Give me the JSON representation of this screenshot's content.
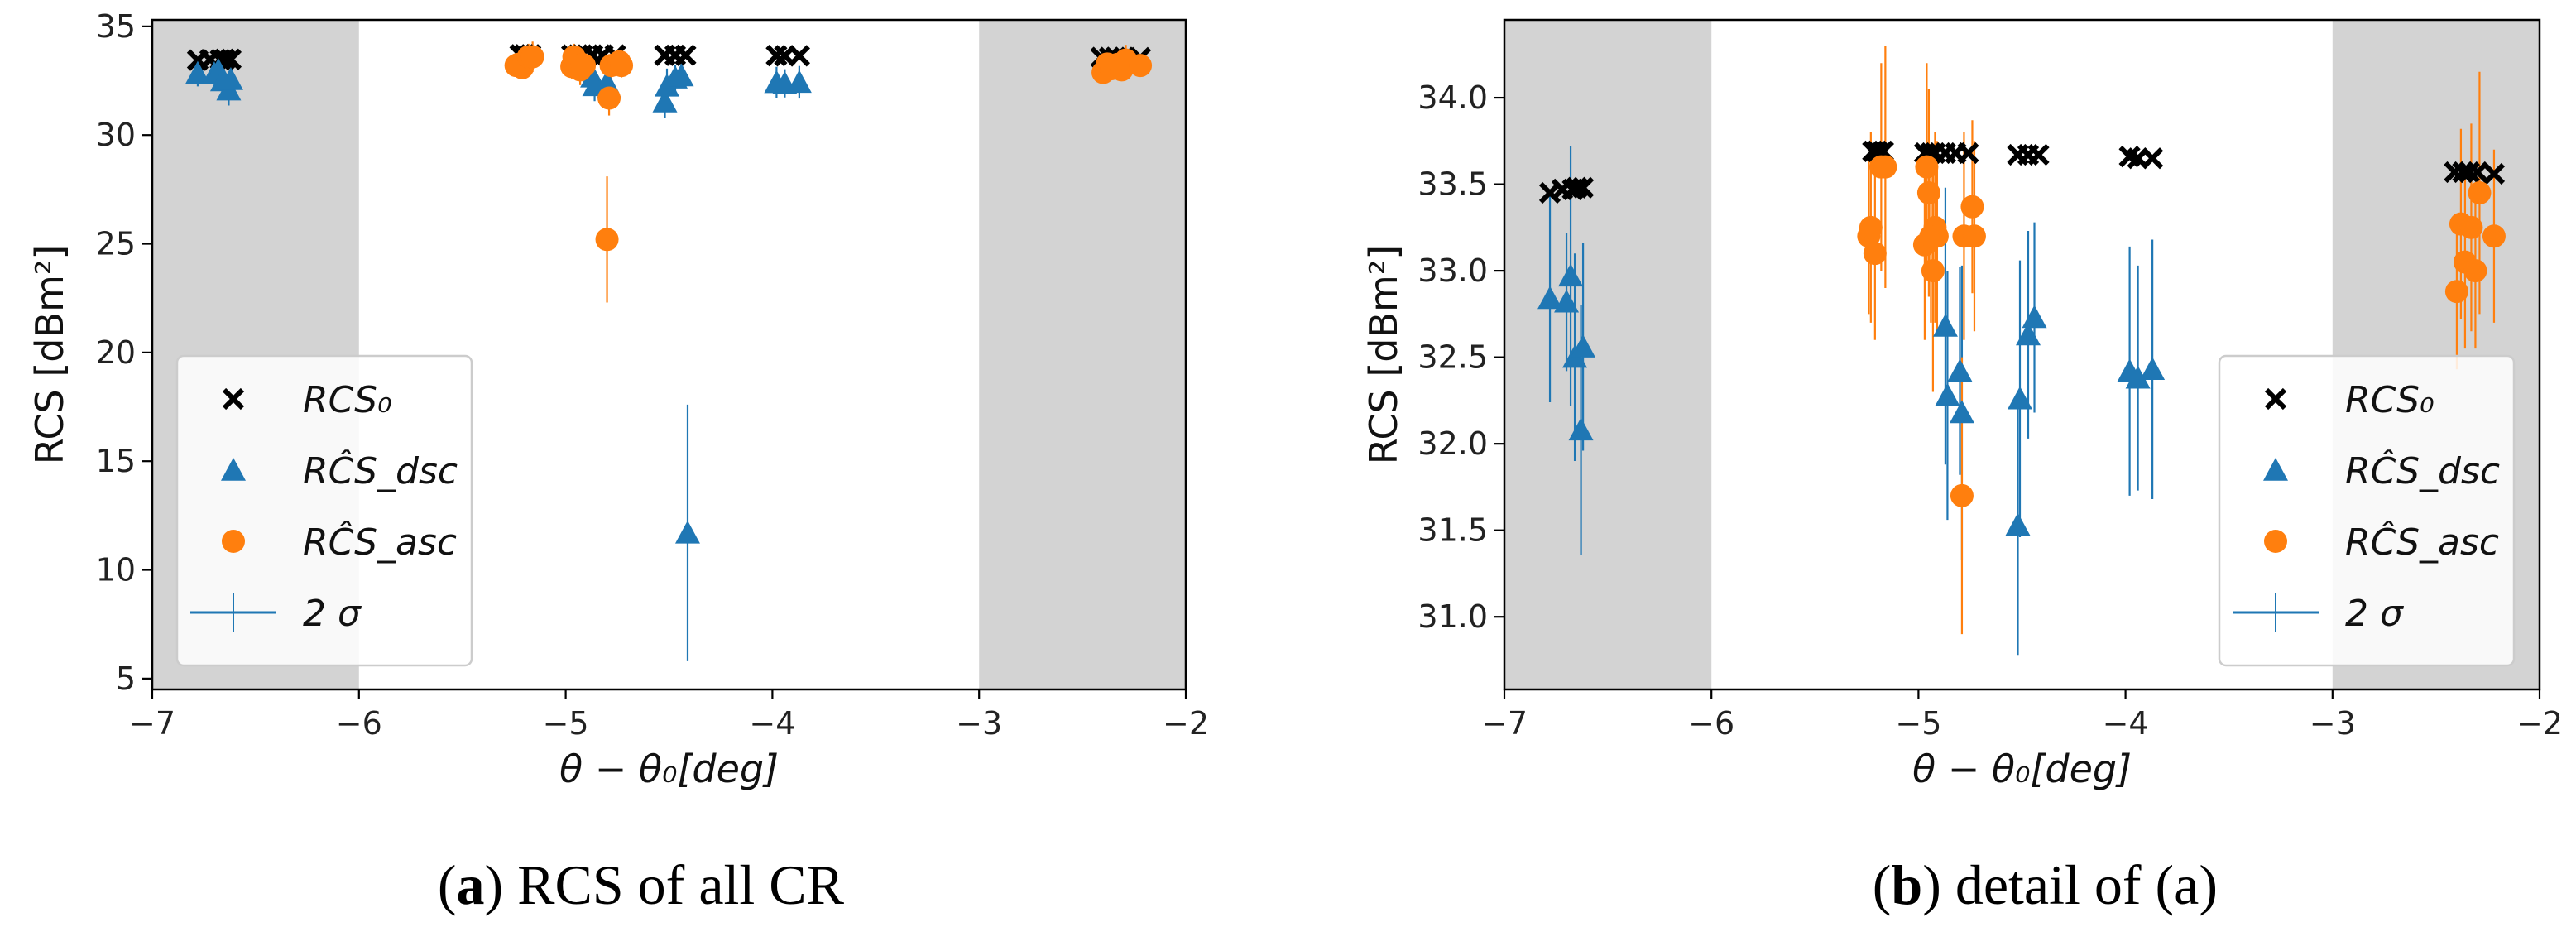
{
  "chart_data": [
    {
      "type": "scatter",
      "caption_letter": "a",
      "caption_text": ") RCS of all CR",
      "xlabel": "θ − θ₀[deg]",
      "ylabel": "RCS [dBm²]",
      "xlim": [
        -7,
        -2
      ],
      "ylim": [
        4.5,
        35.3
      ],
      "xticks": [
        -7,
        -6,
        -5,
        -4,
        -3,
        -2
      ],
      "yticks": [
        5,
        10,
        15,
        20,
        25,
        30,
        35
      ],
      "shaded_x_ranges": [
        [
          -7,
          -6
        ],
        [
          -3,
          -2
        ]
      ],
      "grid": false,
      "legend_position": "lower-left",
      "legend": [
        "RCS₀",
        "RĈS_dsc",
        "RĈS_asc",
        "2 σ"
      ],
      "colors": {
        "rcs0": "#000000",
        "dsc": "#1f77b4",
        "asc": "#ff7f0e",
        "shade": "#d3d3d3"
      },
      "series": [
        {
          "name": "RCS₀",
          "marker": "x",
          "x": [
            -6.78,
            -6.72,
            -6.67,
            -6.65,
            -6.62,
            -5.22,
            -5.2,
            -5.17,
            -4.97,
            -4.94,
            -4.92,
            -4.87,
            -4.82,
            -4.76,
            -4.52,
            -4.47,
            -4.42,
            -3.98,
            -3.94,
            -3.87,
            -2.41,
            -2.37,
            -2.34,
            -2.3,
            -2.22
          ],
          "y": [
            33.45,
            33.47,
            33.47,
            33.48,
            33.48,
            33.69,
            33.69,
            33.69,
            33.68,
            33.68,
            33.68,
            33.68,
            33.68,
            33.68,
            33.67,
            33.67,
            33.67,
            33.66,
            33.65,
            33.65,
            33.57,
            33.57,
            33.57,
            33.57,
            33.56
          ]
        },
        {
          "name": "RĈS_dsc",
          "marker": "triangle",
          "x": [
            -6.78,
            -6.7,
            -6.68,
            -6.66,
            -6.63,
            -6.62,
            -4.87,
            -4.86,
            -4.8,
            -4.79,
            -4.52,
            -4.51,
            -4.47,
            -4.44,
            -3.98,
            -3.94,
            -3.87,
            -4.41
          ],
          "y": [
            32.84,
            32.82,
            32.97,
            32.5,
            32.08,
            32.56,
            32.68,
            32.28,
            32.42,
            32.18,
            31.53,
            32.26,
            32.63,
            32.73,
            32.42,
            32.38,
            32.43,
            11.7
          ],
          "err": [
            0.6,
            0.4,
            0.75,
            0.6,
            0.72,
            0.6,
            0.8,
            0.72,
            0.6,
            0.85,
            0.75,
            0.8,
            0.6,
            0.55,
            0.72,
            0.65,
            0.75,
            5.9
          ]
        },
        {
          "name": "RĈS_asc",
          "marker": "circle",
          "x": [
            -5.24,
            -5.23,
            -5.21,
            -5.18,
            -5.16,
            -4.97,
            -4.96,
            -4.95,
            -4.94,
            -4.93,
            -4.92,
            -4.91,
            -4.79,
            -4.78,
            -4.74,
            -4.73,
            -2.4,
            -2.38,
            -2.36,
            -2.33,
            -2.31,
            -2.29,
            -2.22,
            -4.8
          ],
          "y": [
            33.2,
            33.25,
            33.1,
            33.6,
            33.6,
            33.15,
            33.6,
            33.45,
            33.2,
            33.0,
            33.25,
            33.2,
            31.7,
            33.2,
            33.37,
            33.2,
            32.88,
            33.27,
            33.05,
            33.25,
            33.0,
            33.45,
            33.2,
            25.2
          ],
          "err": [
            0.45,
            0.55,
            0.5,
            0.6,
            0.7,
            0.55,
            0.6,
            0.6,
            0.5,
            0.7,
            0.55,
            0.55,
            0.8,
            0.6,
            0.5,
            0.55,
            0.45,
            0.55,
            0.5,
            0.6,
            0.45,
            0.7,
            0.5,
            2.9
          ]
        }
      ]
    },
    {
      "type": "scatter",
      "caption_letter": "b",
      "caption_text": ") detail of (a)",
      "xlabel": "θ − θ₀[deg]",
      "ylabel": "RCS [dBm²]",
      "xlim": [
        -7,
        -2
      ],
      "ylim": [
        30.58,
        34.45
      ],
      "xticks": [
        -7,
        -6,
        -5,
        -4,
        -3,
        -2
      ],
      "yticks": [
        31.0,
        31.5,
        32.0,
        32.5,
        33.0,
        33.5,
        34.0
      ],
      "shaded_x_ranges": [
        [
          -7,
          -6
        ],
        [
          -3,
          -2
        ]
      ],
      "grid": false,
      "legend_position": "lower-right",
      "legend": [
        "RCS₀",
        "RĈS_dsc",
        "RĈS_asc",
        "2 σ"
      ],
      "colors": {
        "rcs0": "#000000",
        "dsc": "#1f77b4",
        "asc": "#ff7f0e",
        "shade": "#d3d3d3"
      },
      "series": [
        {
          "name": "RCS₀",
          "marker": "x",
          "x": [
            -6.78,
            -6.72,
            -6.67,
            -6.65,
            -6.62,
            -5.22,
            -5.2,
            -5.17,
            -4.97,
            -4.94,
            -4.92,
            -4.87,
            -4.82,
            -4.76,
            -4.52,
            -4.47,
            -4.42,
            -3.98,
            -3.94,
            -3.87,
            -2.41,
            -2.37,
            -2.34,
            -2.3,
            -2.22
          ],
          "y": [
            33.45,
            33.47,
            33.47,
            33.48,
            33.48,
            33.69,
            33.69,
            33.69,
            33.68,
            33.68,
            33.68,
            33.68,
            33.68,
            33.68,
            33.67,
            33.67,
            33.67,
            33.66,
            33.65,
            33.65,
            33.57,
            33.57,
            33.57,
            33.57,
            33.56
          ]
        },
        {
          "name": "RĈS_dsc",
          "marker": "triangle",
          "x": [
            -6.78,
            -6.7,
            -6.68,
            -6.66,
            -6.63,
            -6.62,
            -4.87,
            -4.86,
            -4.8,
            -4.79,
            -4.52,
            -4.51,
            -4.47,
            -4.44,
            -3.98,
            -3.94,
            -3.87
          ],
          "y": [
            32.84,
            32.82,
            32.97,
            32.5,
            32.08,
            32.56,
            32.68,
            32.28,
            32.42,
            32.18,
            31.53,
            32.26,
            32.63,
            32.73,
            32.42,
            32.38,
            32.43
          ],
          "err": [
            0.6,
            0.4,
            0.75,
            0.6,
            0.72,
            0.6,
            0.8,
            0.72,
            0.6,
            0.85,
            0.75,
            0.8,
            0.6,
            0.55,
            0.72,
            0.65,
            0.75
          ]
        },
        {
          "name": "RĈS_asc",
          "marker": "circle",
          "x": [
            -5.24,
            -5.23,
            -5.21,
            -5.18,
            -5.16,
            -4.97,
            -4.96,
            -4.95,
            -4.94,
            -4.93,
            -4.92,
            -4.91,
            -4.79,
            -4.78,
            -4.74,
            -4.73,
            -2.4,
            -2.38,
            -2.36,
            -2.33,
            -2.31,
            -2.29,
            -2.22
          ],
          "y": [
            33.2,
            33.25,
            33.1,
            33.6,
            33.6,
            33.15,
            33.6,
            33.45,
            33.2,
            33.0,
            33.25,
            33.2,
            31.7,
            33.2,
            33.37,
            33.2,
            32.88,
            33.27,
            33.05,
            33.25,
            33.0,
            33.45,
            33.2
          ],
          "err": [
            0.45,
            0.55,
            0.5,
            0.6,
            0.7,
            0.55,
            0.6,
            0.6,
            0.5,
            0.7,
            0.55,
            0.55,
            0.8,
            0.6,
            0.5,
            0.55,
            0.45,
            0.55,
            0.5,
            0.6,
            0.45,
            0.7,
            0.5
          ]
        }
      ]
    }
  ]
}
